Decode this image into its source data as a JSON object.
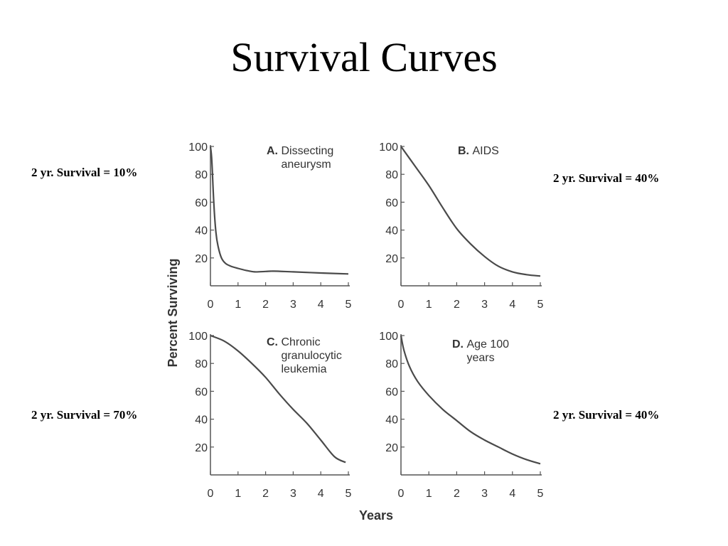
{
  "slide": {
    "title": "Survival Curves",
    "notes": {
      "a": "2 yr. Survival = 10%",
      "b": "2 yr. Survival = 40%",
      "c": "2 yr. Survival = 70%",
      "d": "2 yr. Survival = 40%"
    }
  },
  "figure": {
    "ylabel": "Percent Surviving",
    "xlabel": "Years"
  },
  "colors": {
    "curve": "#4a4a4a",
    "axis": "#555555",
    "text": "#333333"
  },
  "chart_data": [
    {
      "type": "line",
      "panel_letter": "A.",
      "title_lines": [
        "Dissecting",
        "aneurysm"
      ],
      "xlim": [
        0,
        5
      ],
      "ylim": [
        0,
        100
      ],
      "xticks": [
        0,
        1,
        2,
        3,
        4,
        5
      ],
      "yticks": [
        20,
        40,
        60,
        80,
        100
      ],
      "x": [
        0,
        0.05,
        0.12,
        0.2,
        0.28,
        0.4,
        0.55,
        0.75,
        1.0,
        1.3,
        1.6,
        2.0,
        2.3,
        3.0,
        4.0,
        5.0
      ],
      "y": [
        100,
        90,
        60,
        38,
        28,
        20,
        16,
        14,
        12.5,
        11,
        10,
        10.3,
        10.5,
        10,
        9.2,
        8.5
      ]
    },
    {
      "type": "line",
      "panel_letter": "B.",
      "title_lines": [
        "AIDS"
      ],
      "xlim": [
        0,
        5
      ],
      "ylim": [
        0,
        100
      ],
      "xticks": [
        0,
        1,
        2,
        3,
        4,
        5
      ],
      "yticks": [
        20,
        40,
        60,
        80,
        100
      ],
      "x": [
        0,
        0.5,
        1.0,
        1.5,
        2.0,
        2.5,
        3.0,
        3.5,
        4.0,
        4.5,
        5.0
      ],
      "y": [
        100,
        86,
        72,
        56,
        41,
        30,
        21,
        14,
        10,
        8,
        7
      ]
    },
    {
      "type": "line",
      "panel_letter": "C.",
      "title_lines": [
        "Chronic",
        "granulocytic",
        "leukemia"
      ],
      "xlim": [
        0,
        5
      ],
      "ylim": [
        0,
        100
      ],
      "xticks": [
        0,
        1,
        2,
        3,
        4,
        5
      ],
      "yticks": [
        20,
        40,
        60,
        80,
        100
      ],
      "x": [
        0,
        0.5,
        1.0,
        1.5,
        2.0,
        2.5,
        3.0,
        3.5,
        4.0,
        4.5,
        4.9
      ],
      "y": [
        100,
        96,
        89,
        80,
        70,
        58,
        47,
        37,
        25,
        13,
        9
      ]
    },
    {
      "type": "line",
      "panel_letter": "D.",
      "title_lines": [
        "Age 100",
        "years"
      ],
      "xlim": [
        0,
        5
      ],
      "ylim": [
        0,
        100
      ],
      "xticks": [
        0,
        1,
        2,
        3,
        4,
        5
      ],
      "yticks": [
        20,
        40,
        60,
        80,
        100
      ],
      "x": [
        0,
        0.1,
        0.3,
        0.6,
        1.0,
        1.5,
        2.0,
        2.5,
        3.0,
        3.5,
        4.0,
        4.5,
        5.0
      ],
      "y": [
        100,
        90,
        78,
        67,
        57,
        47,
        39,
        31,
        25,
        20,
        15,
        11,
        8
      ]
    }
  ]
}
